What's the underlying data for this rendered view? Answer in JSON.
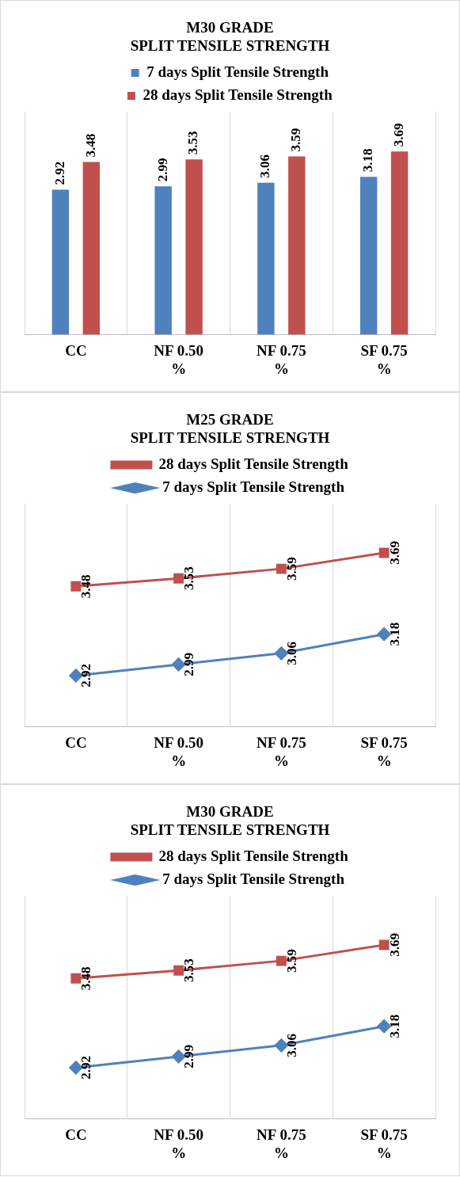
{
  "chart_data": [
    {
      "type": "bar",
      "title": "M30 GRADE\nSPLIT TENSILE STRENGTH",
      "categories": [
        "CC",
        "NF 0.50 %",
        "NF 0.75 %",
        "SF 0.75 %"
      ],
      "series": [
        {
          "name": "7 days Split Tensile Strength",
          "color": "#4f81bd",
          "values": [
            2.92,
            2.99,
            3.06,
            3.18
          ]
        },
        {
          "name": "28 days Split Tensile Strength",
          "color": "#c0504d",
          "values": [
            3.48,
            3.53,
            3.59,
            3.69
          ]
        }
      ],
      "data_labels": true,
      "legend": "top",
      "grid": "x"
    },
    {
      "type": "line",
      "title": "M25 GRADE\nSPLIT TENSILE STRENGTH",
      "categories": [
        "CC",
        "NF 0.50 %",
        "NF 0.75 %",
        "SF 0.75 %"
      ],
      "series": [
        {
          "name": "28 days Split Tensile Strength",
          "color": "#c0504d",
          "marker": "square",
          "values": [
            3.48,
            3.53,
            3.59,
            3.69
          ]
        },
        {
          "name": "7 days Split Tensile Strength",
          "color": "#4f81bd",
          "marker": "diamond",
          "values": [
            2.92,
            2.99,
            3.06,
            3.18
          ]
        }
      ],
      "data_labels": true,
      "legend": "top",
      "grid": "x"
    },
    {
      "type": "line",
      "title": "M30 GRADE\nSPLIT TENSILE STRENGTH",
      "categories": [
        "CC",
        "NF 0.50 %",
        "NF 0.75 %",
        "SF 0.75 %"
      ],
      "series": [
        {
          "name": "28 days Split Tensile Strength",
          "color": "#c0504d",
          "marker": "square",
          "values": [
            3.48,
            3.53,
            3.59,
            3.69
          ]
        },
        {
          "name": "7 days Split Tensile Strength",
          "color": "#4f81bd",
          "marker": "diamond",
          "values": [
            2.92,
            2.99,
            3.06,
            3.18
          ]
        }
      ],
      "data_labels": true,
      "legend": "top",
      "grid": "x"
    }
  ]
}
